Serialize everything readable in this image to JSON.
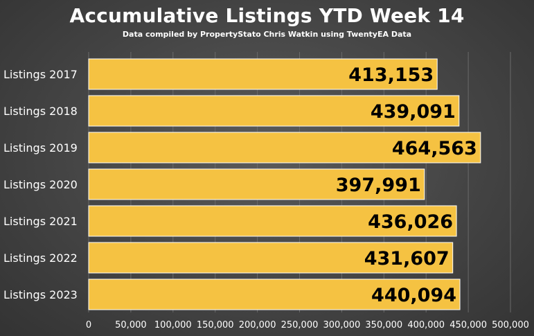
{
  "chart_data": {
    "type": "bar",
    "orientation": "horizontal",
    "title": "Accumulative Listings YTD Week 14",
    "subtitle": "Data compiled by PropertyStato Chris Watkin using TwentyEA Data",
    "categories": [
      "Listings 2017",
      "Listings 2018",
      "Listings 2019",
      "Listings 2020",
      "Listings 2021",
      "Listings 2022",
      "Listings 2023"
    ],
    "values": [
      413153,
      439091,
      464563,
      397991,
      436026,
      431607,
      440094
    ],
    "value_labels": [
      "413,153",
      "439,091",
      "464,563",
      "397,991",
      "436,026",
      "431,607",
      "440,094"
    ],
    "xticks": [
      "0",
      "50,000",
      "100,000",
      "150,000",
      "200,000",
      "250,000",
      "300,000",
      "350,000",
      "400,000",
      "450,000",
      "500,000"
    ],
    "xlim": [
      0,
      500000
    ],
    "grid": true,
    "bar_color": "#f5c242",
    "background": "#444444"
  }
}
